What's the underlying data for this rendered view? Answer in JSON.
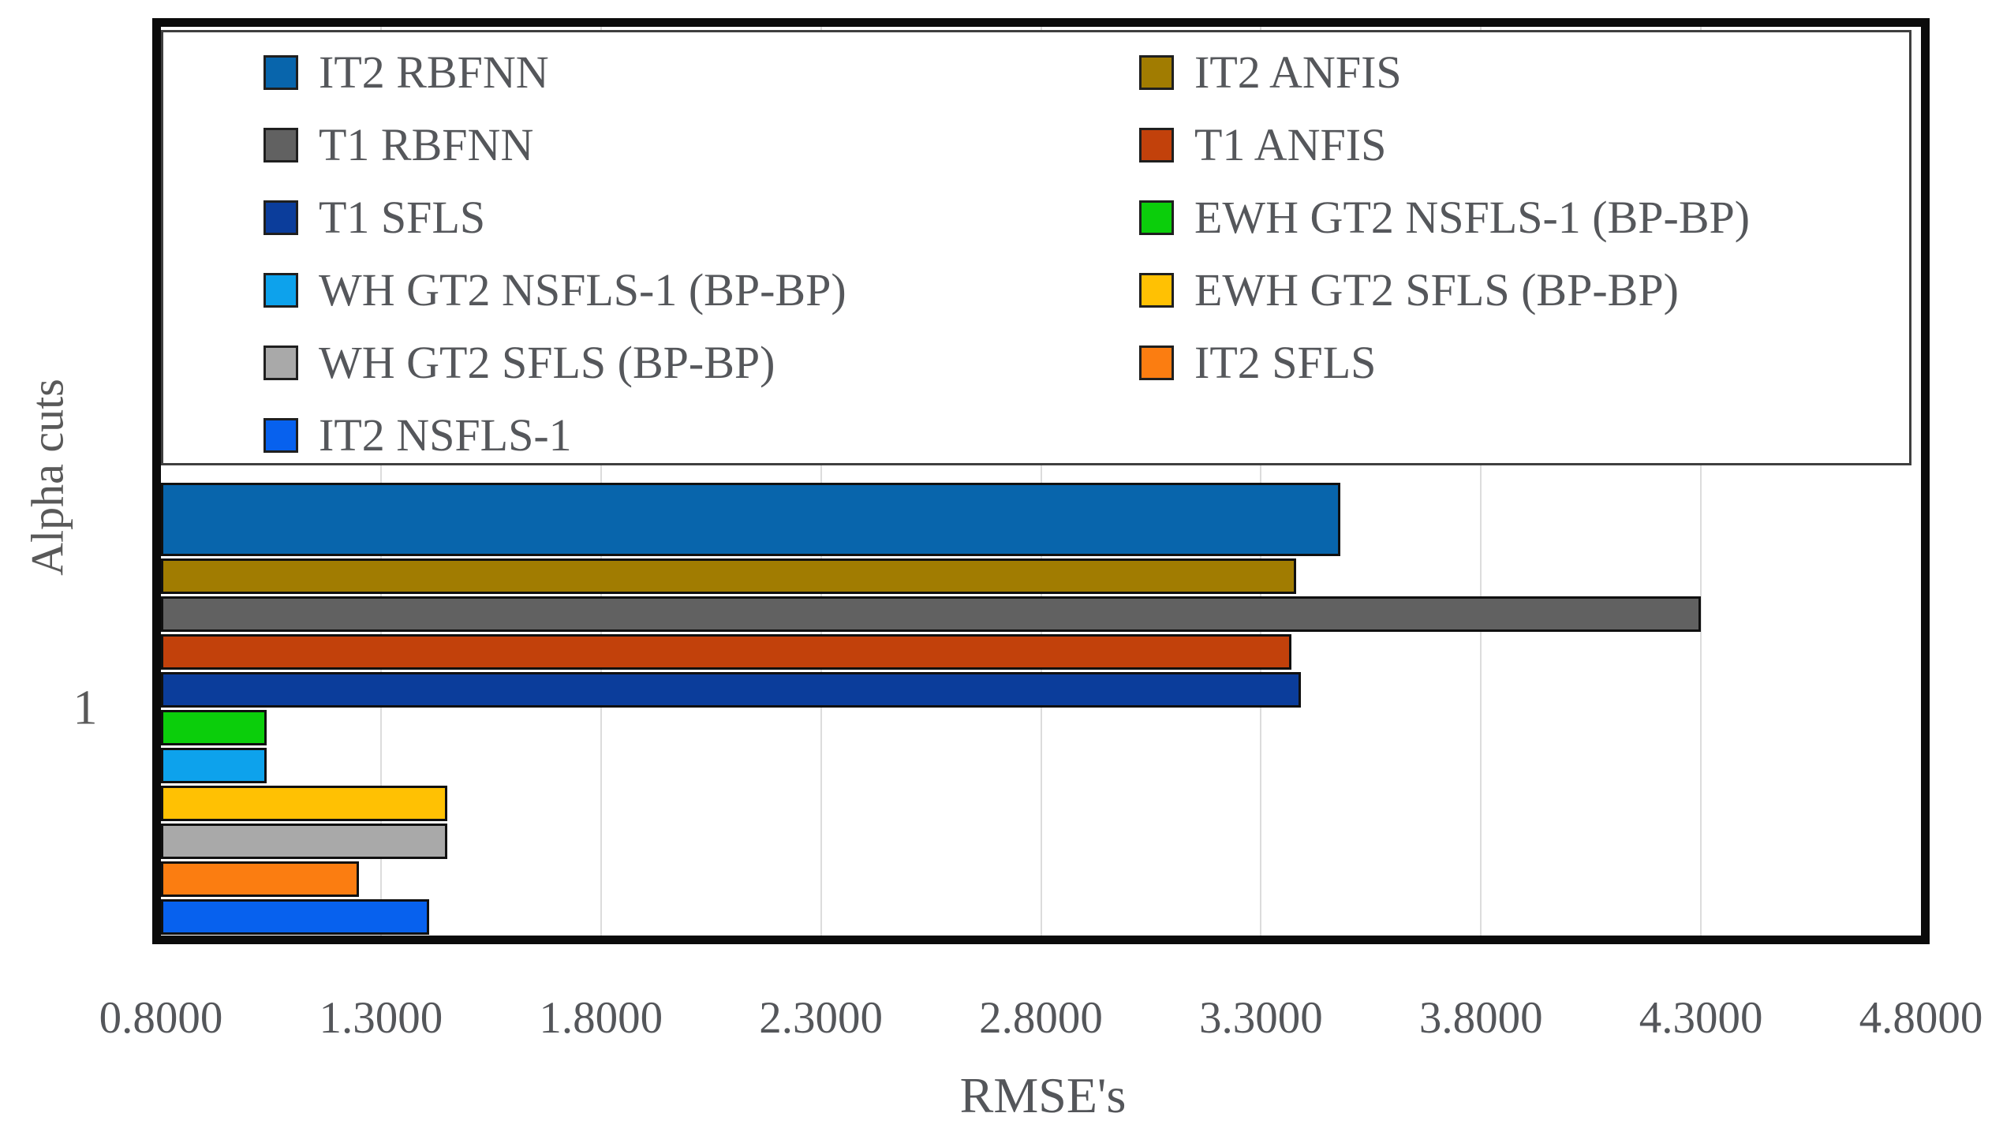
{
  "chart_data": {
    "type": "bar",
    "orientation": "horizontal",
    "title": "",
    "xlabel": "RMSE's",
    "ylabel": "Alpha cuts",
    "category": "1",
    "xlim": [
      0.8,
      4.8
    ],
    "xtick_values": [
      0.8,
      1.3,
      1.8,
      2.3,
      2.8,
      3.3,
      3.8,
      4.3,
      4.8
    ],
    "xtick_labels": [
      "0.8000",
      "1.3000",
      "1.8000",
      "2.3000",
      "2.8000",
      "3.3000",
      "3.8000",
      "4.3000",
      "4.8000"
    ],
    "grid": "vertical-light-gray",
    "legend_position": "top-inside",
    "series": [
      {
        "name": "IT2 RBFNN",
        "value": 3.48,
        "color": "#0865ac"
      },
      {
        "name": "IT2 ANFIS",
        "value": 3.38,
        "color": "#a17c01"
      },
      {
        "name": "T1 RBFNN",
        "value": 4.3,
        "color": "#616161"
      },
      {
        "name": "T1 ANFIS",
        "value": 3.37,
        "color": "#c2410b"
      },
      {
        "name": "T1 SFLS",
        "value": 3.39,
        "color": "#0b3d9b"
      },
      {
        "name": "EWH GT2 NSFLS-1 (BP-BP)",
        "value": 1.04,
        "color": "#0bce0b"
      },
      {
        "name": "WH GT2 NSFLS-1 (BP-BP)",
        "value": 1.04,
        "color": "#0da2ec"
      },
      {
        "name": "EWH GT2 SFLS (BP-BP)",
        "value": 1.45,
        "color": "#ffc103"
      },
      {
        "name": "WH GT2 SFLS (BP-BP)",
        "value": 1.45,
        "color": "#a9a9a9"
      },
      {
        "name": "IT2 SFLS",
        "value": 1.25,
        "color": "#fb7d11"
      },
      {
        "name": "IT2 NSFLS-1",
        "value": 1.41,
        "color": "#0761ee"
      }
    ],
    "legend_layout": {
      "left_column": [
        0,
        2,
        4,
        6,
        8,
        10
      ],
      "right_column": [
        1,
        3,
        5,
        7,
        9
      ]
    }
  },
  "style_colors": {
    "grid": "#dcdcdc",
    "text": "#54565a",
    "bar_border": "#101010",
    "chart_border": "#0b0b0b",
    "legend_border": "#3f3f3f"
  }
}
